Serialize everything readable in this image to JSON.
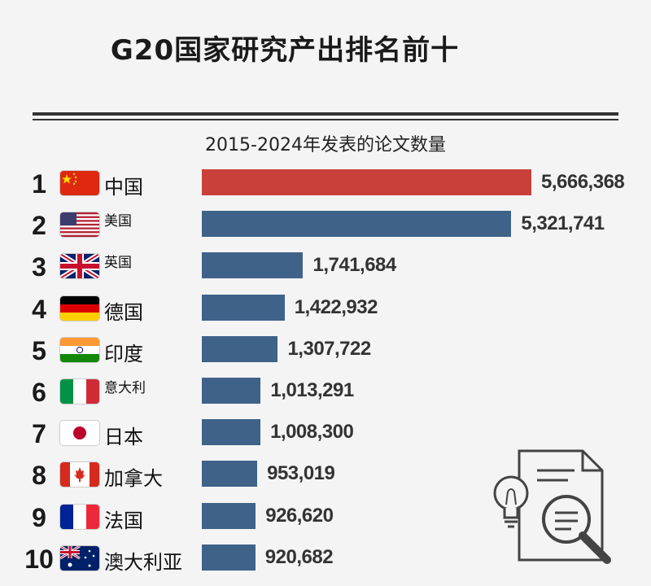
{
  "title": "G20国家研究产出排名前十",
  "subtitle": "2015-2024年发表的论文数量",
  "colors": {
    "highlight": "#c9403a",
    "bar": "#3f6289",
    "background": "#f4f4f4"
  },
  "chart_data": {
    "type": "bar",
    "orientation": "horizontal",
    "title": "G20国家研究产出排名前十",
    "subtitle": "2015-2024年发表的论文数量",
    "categories": [
      "中国",
      "美国",
      "英国",
      "德国",
      "印度",
      "意大利",
      "日本",
      "加拿大",
      "法国",
      "澳大利亚"
    ],
    "ranks": [
      "1",
      "2",
      "3",
      "4",
      "5",
      "6",
      "7",
      "8",
      "9",
      "10"
    ],
    "values": [
      5666368,
      5321741,
      1741684,
      1422932,
      1307722,
      1013291,
      1008300,
      953019,
      926620,
      920682
    ],
    "value_labels": [
      "5,666,368",
      "5,321,741",
      "1,741,684",
      "1,422,932",
      "1,307,722",
      "1,013,291",
      "1,008,300",
      "953,019",
      "926,620",
      "920,682"
    ],
    "flag_icons": [
      "china-flag-icon",
      "usa-flag-icon",
      "uk-flag-icon",
      "germany-flag-icon",
      "india-flag-icon",
      "italy-flag-icon",
      "japan-flag-icon",
      "canada-flag-icon",
      "france-flag-icon",
      "australia-flag-icon"
    ],
    "xlim": [
      0,
      5666368
    ],
    "highlight_index": 0
  },
  "decoration_icon": "document-search-icon"
}
